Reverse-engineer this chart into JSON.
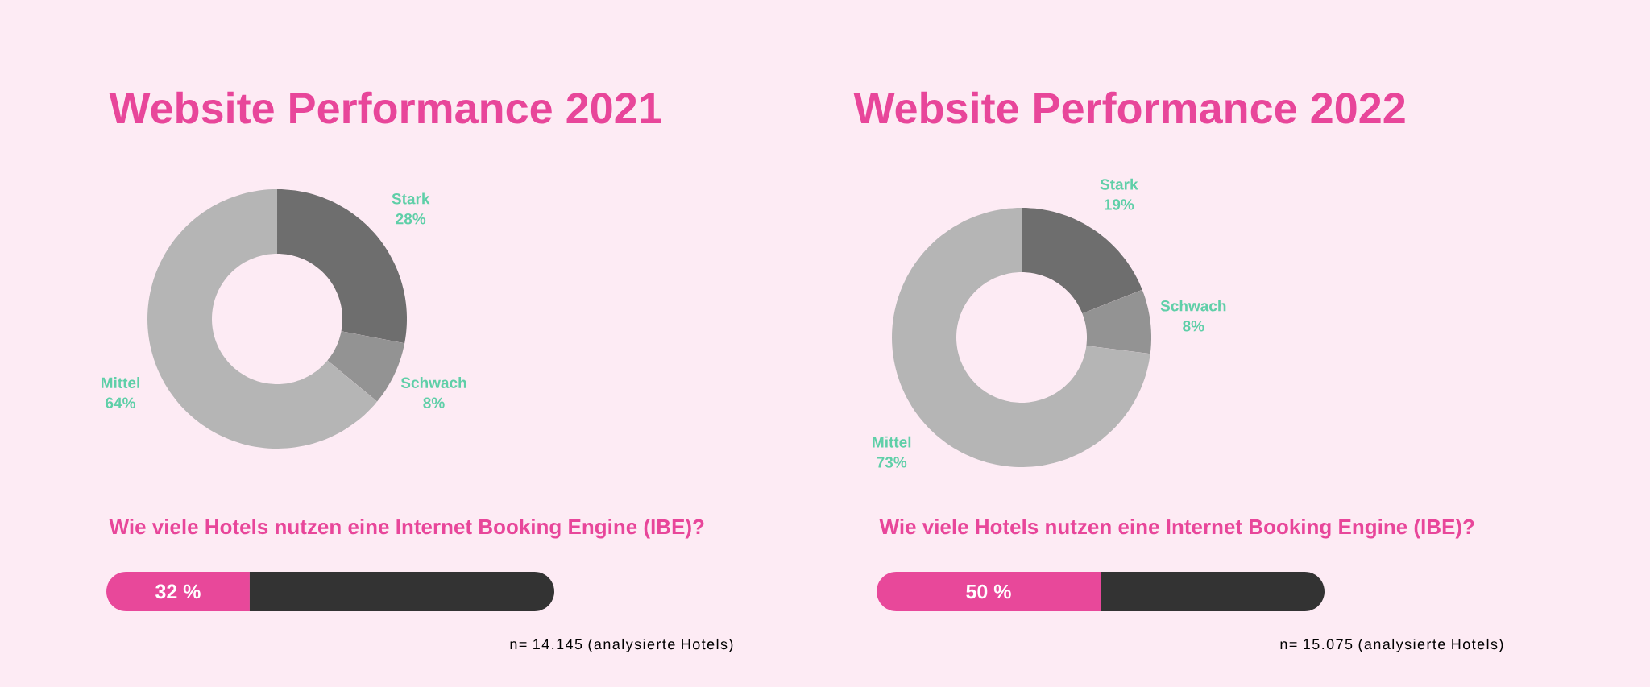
{
  "chart_data": [
    {
      "type": "donut",
      "title": "Website Performance 2021",
      "categories": [
        "Stark",
        "Schwach",
        "Mittel"
      ],
      "values": [
        28,
        8,
        64
      ],
      "value_labels": [
        "28%",
        "8%",
        "64%"
      ],
      "colors": [
        "#6e6e6e",
        "#939393",
        "#b5b5b5"
      ]
    },
    {
      "type": "bar",
      "title": "Wie viele Hotels nutzen eine Internet Booking Engine (IBE)?",
      "orientation": "horizontal",
      "stacked": true,
      "xlim": [
        0,
        100
      ],
      "categories": [
        null
      ],
      "series": [
        {
          "color": "#e8489a",
          "values": [
            32
          ],
          "value_labels": [
            "32 %"
          ]
        },
        {
          "color": "#333333",
          "values": [
            68
          ]
        }
      ],
      "annotations": [
        "n= 14.145 (analysierte Hotels)"
      ]
    },
    {
      "type": "donut",
      "title": "Website Performance 2022",
      "categories": [
        "Stark",
        "Schwach",
        "Mittel"
      ],
      "values": [
        19,
        8,
        73
      ],
      "value_labels": [
        "19%",
        "8%",
        "73%"
      ],
      "colors": [
        "#6e6e6e",
        "#939393",
        "#b5b5b5"
      ]
    },
    {
      "type": "bar",
      "title": "Wie viele Hotels nutzen eine Internet Booking Engine (IBE)?",
      "orientation": "horizontal",
      "stacked": true,
      "xlim": [
        0,
        100
      ],
      "categories": [
        null
      ],
      "series": [
        {
          "color": "#e8489a",
          "values": [
            50
          ],
          "value_labels": [
            "50 %"
          ]
        },
        {
          "color": "#333333",
          "values": [
            50
          ]
        }
      ],
      "annotations": [
        "n= 15.075 (analysierte Hotels)"
      ]
    }
  ]
}
